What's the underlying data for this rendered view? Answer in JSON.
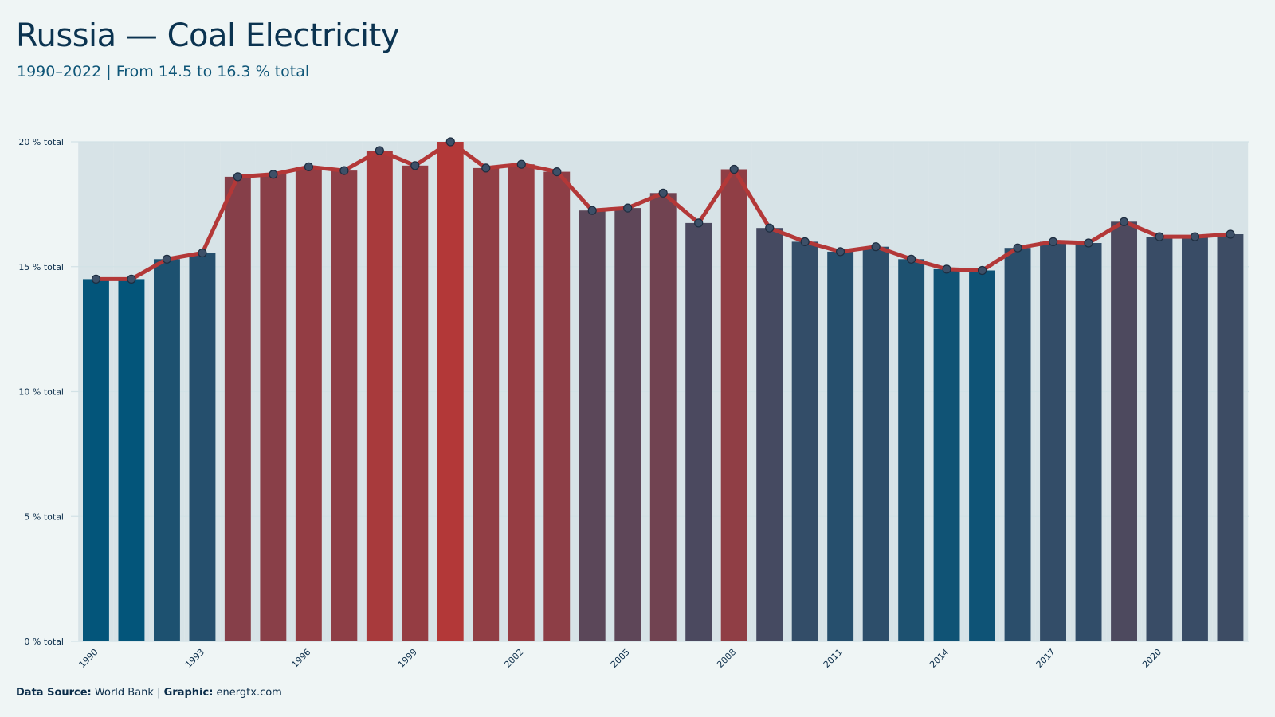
{
  "header": {
    "title": "Russia — Coal Electricity",
    "subtitle": "1990–2022 | From 14.5 to 16.3 % total"
  },
  "footer": {
    "source_label": "Data Source:",
    "source_value": "World Bank",
    "separator": "|",
    "graphic_label": "Graphic:",
    "graphic_value": "energtx.com"
  },
  "colors": {
    "background": "#eff5f5",
    "low_bar": "#03557a",
    "high_bar": "#b33838",
    "line": "#b33838",
    "point_fill": "#3d5068",
    "point_stroke": "#1d2d40",
    "grid": "#d2e2e6",
    "band": "#d7e3e7"
  },
  "chart_data": {
    "type": "bar",
    "title": "Russia — Coal Electricity",
    "subtitle": "1990–2022 | From 14.5 to 16.3 % total",
    "xlabel": "",
    "ylabel": "",
    "y_unit": "% total",
    "ylim": [
      0,
      20
    ],
    "yticks": [
      0,
      5,
      10,
      15,
      20
    ],
    "ytick_labels": [
      "0 % total",
      "5 % total",
      "10 % total",
      "15 % total",
      "20 % total"
    ],
    "xtick_labels": [
      "1990",
      "1993",
      "1996",
      "1999",
      "2002",
      "2005",
      "2008",
      "2011",
      "2014",
      "2017",
      "2020"
    ],
    "grid": true,
    "overlay": "line with point markers on the same values",
    "color_encoding": "bar color blends from blue (low) to red (high) by value",
    "categories": [
      "1990",
      "1991",
      "1992",
      "1993",
      "1994",
      "1995",
      "1996",
      "1997",
      "1998",
      "1999",
      "2000",
      "2001",
      "2002",
      "2003",
      "2004",
      "2005",
      "2006",
      "2007",
      "2008",
      "2009",
      "2010",
      "2011",
      "2012",
      "2013",
      "2014",
      "2015",
      "2016",
      "2017",
      "2018",
      "2019",
      "2020",
      "2021",
      "2022"
    ],
    "values": [
      14.5,
      14.5,
      15.3,
      15.55,
      18.6,
      18.7,
      19.0,
      18.85,
      19.65,
      19.05,
      20.0,
      18.95,
      19.1,
      18.8,
      17.25,
      17.35,
      17.95,
      16.75,
      18.9,
      16.55,
      16.0,
      15.6,
      15.8,
      15.3,
      14.9,
      14.85,
      15.75,
      16.0,
      15.95,
      16.8,
      16.2,
      16.2,
      16.3
    ]
  }
}
